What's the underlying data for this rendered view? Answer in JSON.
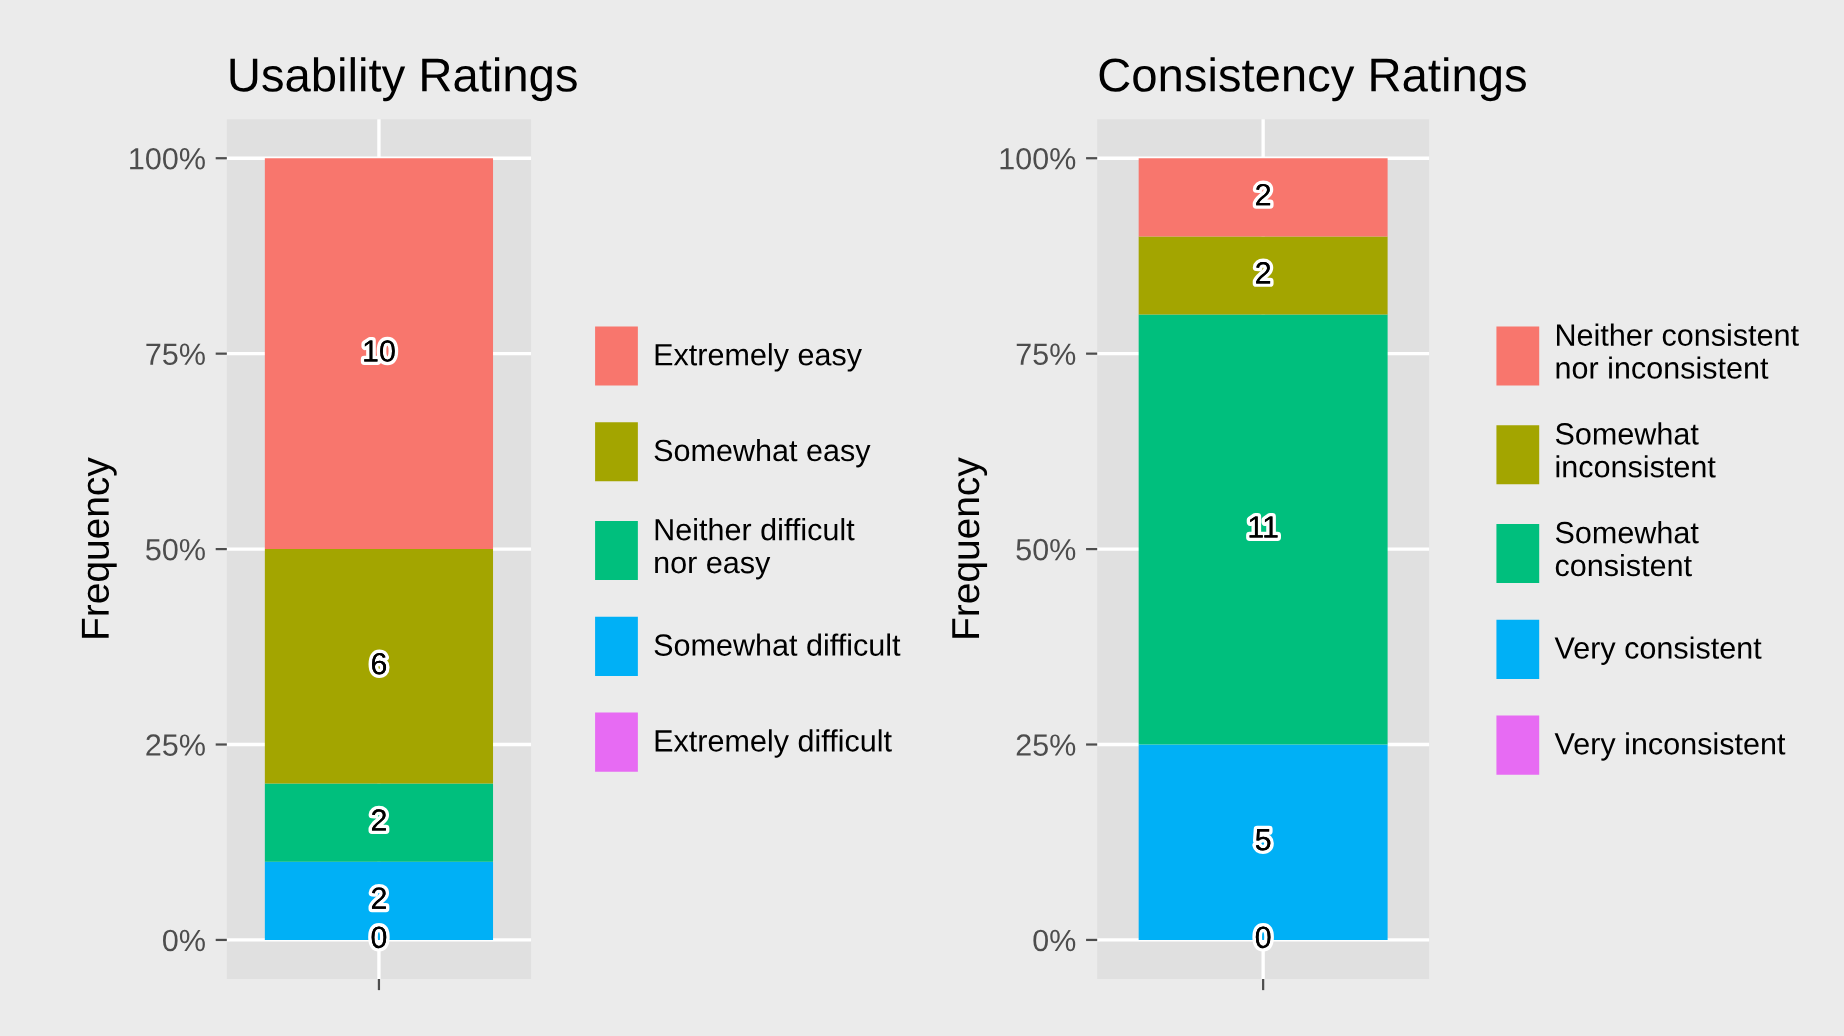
{
  "chart_data": [
    {
      "type": "bar",
      "stacked": true,
      "title": "Usability Ratings",
      "ylabel": "Frequency",
      "categories": [
        null
      ],
      "ylim": [
        -5,
        105
      ],
      "yticks": [
        {
          "value": 0,
          "label": "0%"
        },
        {
          "value": 25,
          "label": "25%"
        },
        {
          "value": 50,
          "label": "50%"
        },
        {
          "value": 75,
          "label": "75%"
        },
        {
          "value": 100,
          "label": "100%"
        }
      ],
      "grid": true,
      "legend": "right",
      "series": [
        {
          "name": "Extremely difficult",
          "color": "#e76bf3",
          "values": [
            0
          ]
        },
        {
          "name": "Somewhat difficult",
          "color": "#00b0f6",
          "values": [
            10
          ]
        },
        {
          "name": "Neither difficult\nnor easy",
          "color": "#00bf7d",
          "values": [
            10
          ]
        },
        {
          "name": "Somewhat easy",
          "color": "#a3a500",
          "values": [
            30
          ]
        },
        {
          "name": "Extremely easy",
          "color": "#f8766d",
          "values": [
            50
          ]
        }
      ],
      "annotations": [
        "0",
        "2",
        "2",
        "6",
        "10"
      ]
    },
    {
      "type": "bar",
      "stacked": true,
      "title": "Consistency Ratings",
      "ylabel": "Frequency",
      "categories": [
        null
      ],
      "ylim": [
        -5,
        105
      ],
      "yticks": [
        {
          "value": 0,
          "label": "0%"
        },
        {
          "value": 25,
          "label": "25%"
        },
        {
          "value": 50,
          "label": "50%"
        },
        {
          "value": 75,
          "label": "75%"
        },
        {
          "value": 100,
          "label": "100%"
        }
      ],
      "grid": true,
      "legend": "right",
      "series": [
        {
          "name": "Very inconsistent",
          "color": "#e76bf3",
          "values": [
            0
          ]
        },
        {
          "name": "Very consistent",
          "color": "#00b0f6",
          "values": [
            25
          ]
        },
        {
          "name": "Somewhat\nconsistent",
          "color": "#00bf7d",
          "values": [
            55
          ]
        },
        {
          "name": "Somewhat\ninconsistent",
          "color": "#a3a500",
          "values": [
            10
          ]
        },
        {
          "name": "Neither consistent\nnor inconsistent",
          "color": "#f8766d",
          "values": [
            10
          ]
        }
      ],
      "annotations": [
        "0",
        "5",
        "11",
        "2",
        "2"
      ]
    }
  ]
}
